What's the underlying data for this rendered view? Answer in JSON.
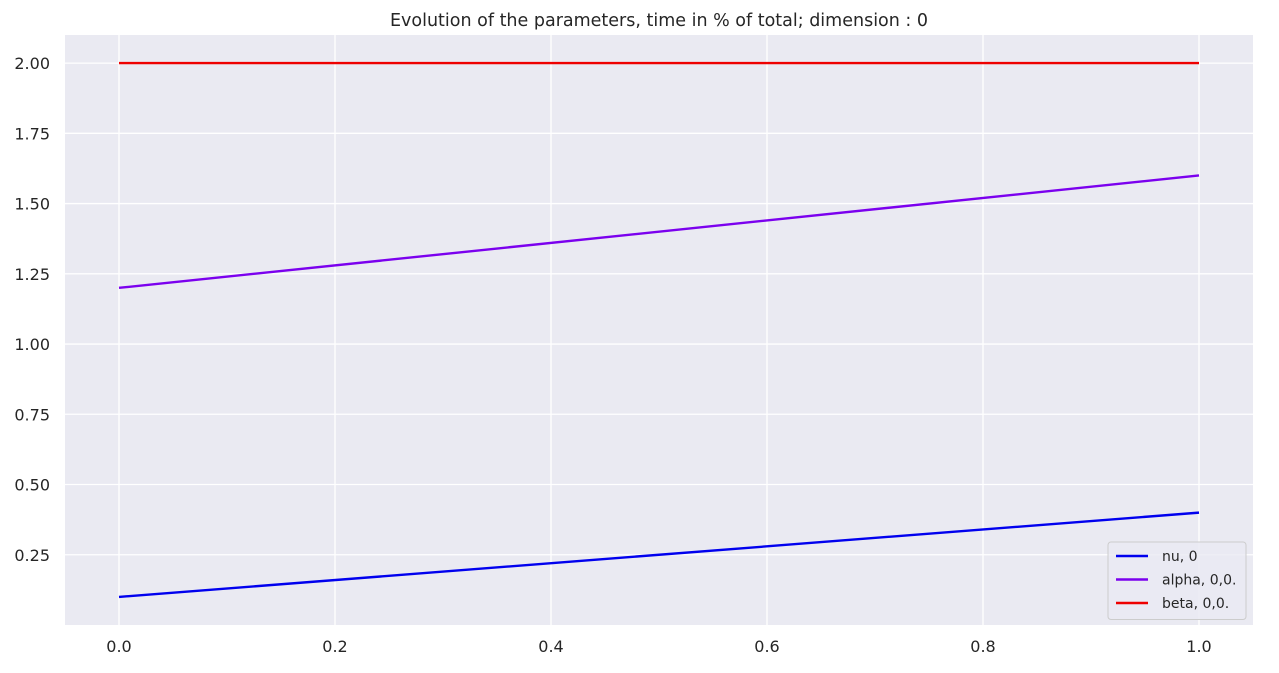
{
  "chart_data": {
    "type": "line",
    "title": "Evolution of the parameters, time in % of total; dimension : 0",
    "xlabel": "",
    "ylabel": "",
    "xlim": [
      -0.05,
      1.05
    ],
    "ylim": [
      0.0,
      2.1
    ],
    "x_ticks": [
      "0.0",
      "0.2",
      "0.4",
      "0.6",
      "0.8",
      "1.0"
    ],
    "y_ticks": [
      "0.25",
      "0.50",
      "0.75",
      "1.00",
      "1.25",
      "1.50",
      "1.75",
      "2.00"
    ],
    "grid": true,
    "legend_position": "bottom-right",
    "background_color": "#eaeaf2",
    "series": [
      {
        "name": "nu, 0",
        "color": "#0000ee",
        "x": [
          0.0,
          1.0
        ],
        "y": [
          0.1,
          0.4
        ]
      },
      {
        "name": "alpha, 0,0.",
        "color": "#7b00ee",
        "x": [
          0.0,
          1.0
        ],
        "y": [
          1.2,
          1.6
        ]
      },
      {
        "name": "beta, 0,0.",
        "color": "#ee0000",
        "x": [
          0.0,
          1.0
        ],
        "y": [
          2.0,
          2.0
        ]
      }
    ]
  }
}
